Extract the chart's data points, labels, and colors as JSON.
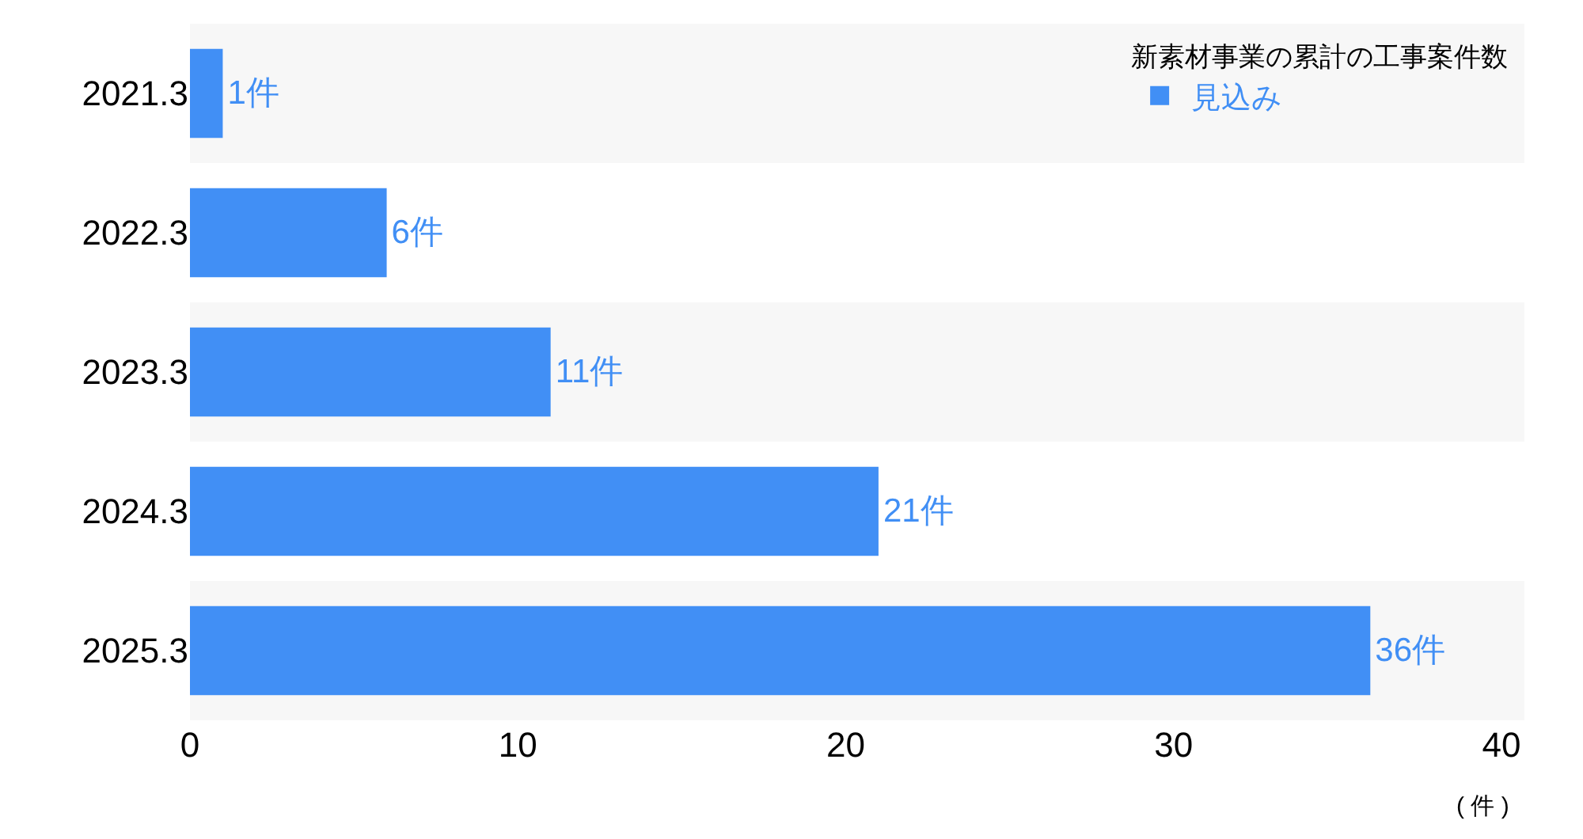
{
  "chart_data": {
    "type": "bar",
    "orientation": "horizontal",
    "legend_title": "新素材事業の累計の工事案件数",
    "xlabel": "( 件 )",
    "categories": [
      "2021.3",
      "2022.3",
      "2023.3",
      "2024.3",
      "2025.3"
    ],
    "series": [
      {
        "name": "見込み",
        "color": "#418ff5",
        "values": [
          1,
          6,
          11,
          21,
          36
        ],
        "value_labels": [
          "1件",
          "6件",
          "11件",
          "21件",
          "36件"
        ]
      }
    ],
    "xlim": [
      0,
      40.7
    ],
    "xticks": [
      0,
      10,
      20,
      30,
      40
    ],
    "grid": false,
    "legend": "top right",
    "bands": [
      {
        "axis": "y",
        "from": "2021.3",
        "to": "2021.3",
        "color": "#f7f7f7"
      },
      {
        "axis": "y",
        "from": "2023.3",
        "to": "2023.3",
        "color": "#f7f7f7"
      },
      {
        "axis": "y",
        "from": "2025.3",
        "to": "2025.3",
        "color": "#f7f7f7"
      }
    ]
  }
}
